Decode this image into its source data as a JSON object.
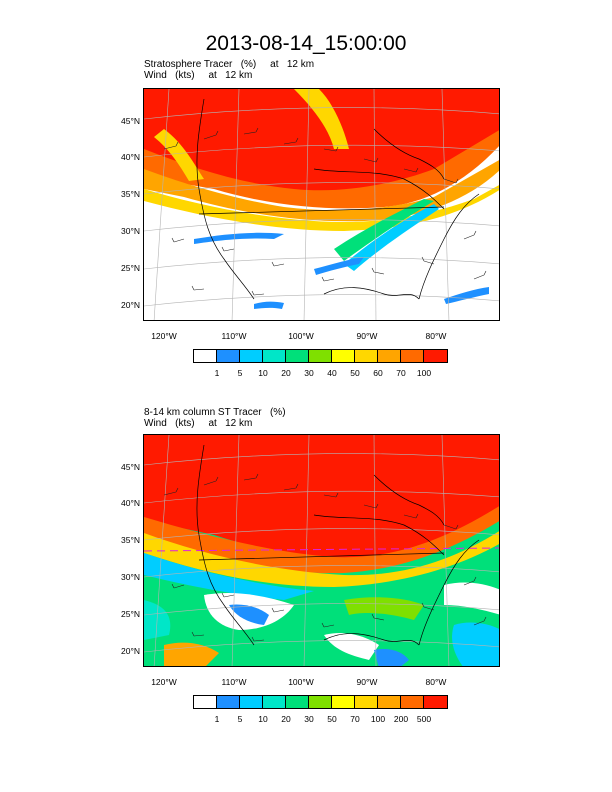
{
  "title": "2013-08-14_15:00:00",
  "colors": {
    "white": "#ffffff",
    "blue": "#1e90ff",
    "cyan": "#00cdff",
    "teal": "#00e6c8",
    "green": "#00e07a",
    "lightgreen": "#7fe000",
    "yellow": "#ffff00",
    "gold": "#ffd700",
    "orange": "#ffa500",
    "darkorange": "#ff6a00",
    "red": "#ff1a00"
  },
  "lat_labels": [
    "45°N",
    "40°N",
    "35°N",
    "30°N",
    "25°N",
    "20°N"
  ],
  "lon_labels": [
    "120°W",
    "110°W",
    "100°W",
    "90°W",
    "80°W"
  ],
  "panels": [
    {
      "subtitle_line1": "Stratosphere Tracer   (%)     at   12 km",
      "subtitle_line2": "Wind   (kts)     at   12 km",
      "colorbar_labels": [
        "1",
        "5",
        "10",
        "20",
        "30",
        "40",
        "50",
        "60",
        "70",
        "100"
      ]
    },
    {
      "subtitle_line1": "8-14 km column ST Tracer   (%)",
      "subtitle_line2": "Wind   (kts)     at   12 km",
      "colorbar_labels": [
        "1",
        "5",
        "10",
        "20",
        "30",
        "50",
        "70",
        "100",
        "200",
        "500"
      ]
    }
  ]
}
